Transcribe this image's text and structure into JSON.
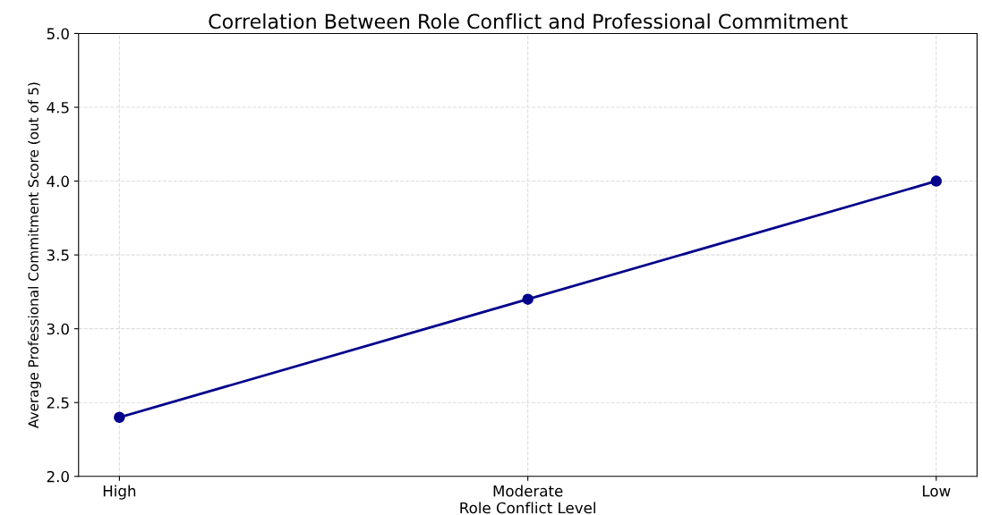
{
  "chart_data": {
    "type": "line",
    "title": "Correlation Between Role Conflict and Professional Commitment",
    "xlabel": "Role Conflict Level",
    "ylabel": "Average Professional Commitment Score (out of 5)",
    "categories": [
      "High",
      "Moderate",
      "Low"
    ],
    "series": [
      {
        "color": "#00008b",
        "values": [
          2.4,
          3.2,
          4.0
        ]
      }
    ],
    "ylim": [
      2.0,
      5.0
    ],
    "yticks": [
      {
        "value": 2.0,
        "label": "2.0"
      },
      {
        "value": 2.5,
        "label": "2.5"
      },
      {
        "value": 3.0,
        "label": "3.0"
      },
      {
        "value": 3.5,
        "label": "3.5"
      },
      {
        "value": 4.0,
        "label": "4.0"
      },
      {
        "value": 4.5,
        "label": "4.5"
      },
      {
        "value": 5.0,
        "label": "5.0"
      }
    ],
    "grid": true,
    "marker": "circle",
    "line_style": "solid"
  }
}
